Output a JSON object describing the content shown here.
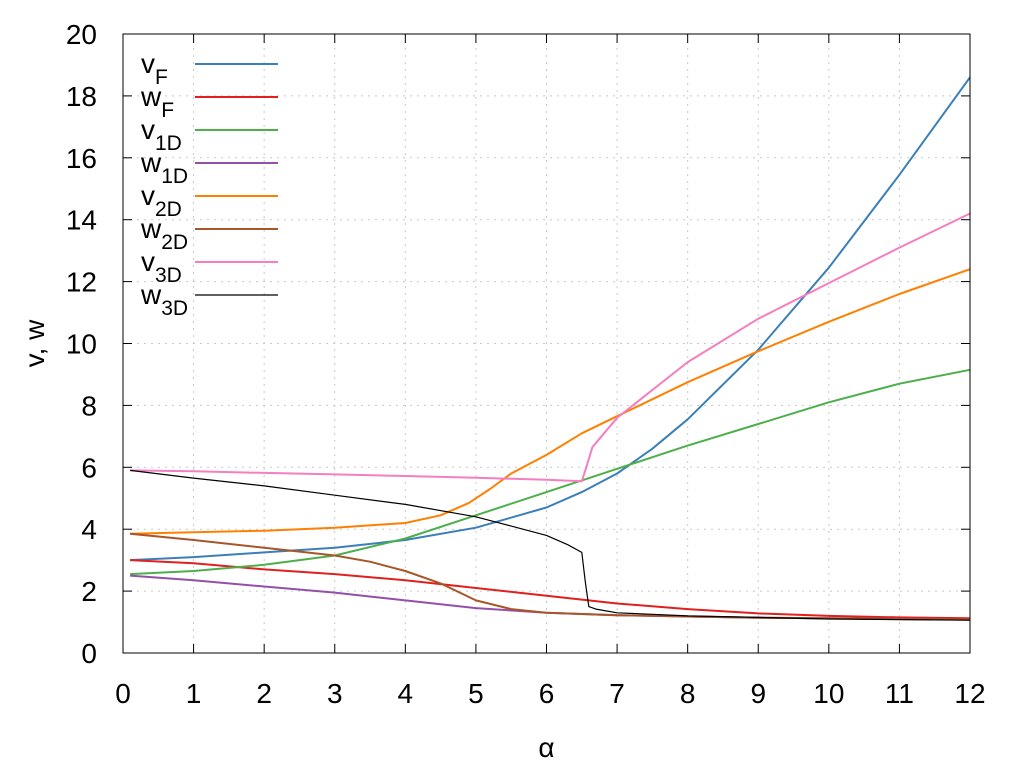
{
  "chart_data": {
    "type": "line",
    "title": "",
    "xlabel": "α",
    "ylabel": "v, w",
    "xlim": [
      0,
      12
    ],
    "ylim": [
      0,
      20
    ],
    "x_ticks": [
      "0",
      "1",
      "2",
      "3",
      "4",
      "5",
      "6",
      "7",
      "8",
      "9",
      "10",
      "11",
      "12"
    ],
    "y_ticks": [
      "0",
      "2",
      "4",
      "6",
      "8",
      "10",
      "12",
      "14",
      "16",
      "18",
      "20"
    ],
    "grid": true,
    "legend_position": "top-left",
    "series": [
      {
        "main": "v",
        "sub": "F",
        "color": "#3a7fb8",
        "x": [
          0.1,
          1,
          2,
          3,
          4,
          5,
          6,
          6.5,
          7,
          7.5,
          8,
          9,
          10,
          11,
          12
        ],
        "y": [
          3.0,
          3.1,
          3.25,
          3.4,
          3.65,
          4.05,
          4.7,
          5.2,
          5.8,
          6.6,
          7.55,
          9.8,
          12.45,
          15.45,
          18.6
        ]
      },
      {
        "main": "w",
        "sub": "F",
        "color": "#e0201e",
        "x": [
          0.1,
          1,
          2,
          3,
          4,
          5,
          6,
          7,
          8,
          9,
          10,
          11,
          12
        ],
        "y": [
          3.0,
          2.9,
          2.7,
          2.55,
          2.35,
          2.1,
          1.85,
          1.6,
          1.42,
          1.28,
          1.2,
          1.15,
          1.12
        ]
      },
      {
        "main": "v",
        "sub": "1D",
        "color": "#4caf4a",
        "x": [
          0.1,
          1,
          2,
          3,
          4,
          5,
          6,
          7,
          8,
          9,
          10,
          11,
          12
        ],
        "y": [
          2.55,
          2.65,
          2.85,
          3.15,
          3.7,
          4.45,
          5.2,
          5.95,
          6.7,
          7.4,
          8.1,
          8.7,
          9.15
        ]
      },
      {
        "main": "w",
        "sub": "1D",
        "color": "#9450a8",
        "x": [
          0.1,
          1,
          2,
          3,
          4,
          5,
          6,
          7,
          8,
          9,
          10,
          11,
          12
        ],
        "y": [
          2.5,
          2.35,
          2.15,
          1.95,
          1.7,
          1.45,
          1.3,
          1.22,
          1.18,
          1.14,
          1.12,
          1.1,
          1.08
        ]
      },
      {
        "main": "v",
        "sub": "2D",
        "color": "#ff8000",
        "x": [
          0.1,
          1,
          2,
          3,
          4,
          4.5,
          4.9,
          5.2,
          5.5,
          6,
          6.5,
          7,
          8,
          9,
          10,
          11,
          12
        ],
        "y": [
          3.85,
          3.9,
          3.95,
          4.05,
          4.2,
          4.45,
          4.85,
          5.3,
          5.8,
          6.4,
          7.1,
          7.65,
          8.75,
          9.75,
          10.7,
          11.6,
          12.4
        ]
      },
      {
        "main": "w",
        "sub": "2D",
        "color": "#a65628",
        "x": [
          0.1,
          1,
          2,
          3,
          3.5,
          4,
          4.5,
          5,
          5.5,
          6,
          7,
          8,
          9,
          10,
          11,
          12
        ],
        "y": [
          3.85,
          3.65,
          3.4,
          3.15,
          2.95,
          2.65,
          2.25,
          1.7,
          1.42,
          1.3,
          1.22,
          1.18,
          1.14,
          1.12,
          1.1,
          1.08
        ]
      },
      {
        "main": "v",
        "sub": "3D",
        "color": "#f47ec0",
        "x": [
          0.1,
          1,
          2,
          3,
          4,
          5,
          6,
          6.5,
          6.55,
          6.65,
          7,
          8,
          9,
          10,
          11,
          12
        ],
        "y": [
          5.9,
          5.87,
          5.82,
          5.77,
          5.72,
          5.66,
          5.6,
          5.55,
          5.9,
          6.65,
          7.6,
          9.4,
          10.8,
          11.95,
          13.1,
          14.2
        ]
      },
      {
        "main": "w",
        "sub": "3D",
        "color": "#000000",
        "x": [
          0.1,
          1,
          2,
          3,
          4,
          5,
          5.5,
          6,
          6.3,
          6.5,
          6.55,
          6.6,
          6.7,
          7,
          8,
          9,
          10,
          11,
          12
        ],
        "y": [
          5.9,
          5.65,
          5.4,
          5.1,
          4.8,
          4.4,
          4.1,
          3.8,
          3.5,
          3.25,
          2.3,
          1.5,
          1.42,
          1.3,
          1.2,
          1.15,
          1.1,
          1.08,
          1.06
        ]
      }
    ]
  }
}
